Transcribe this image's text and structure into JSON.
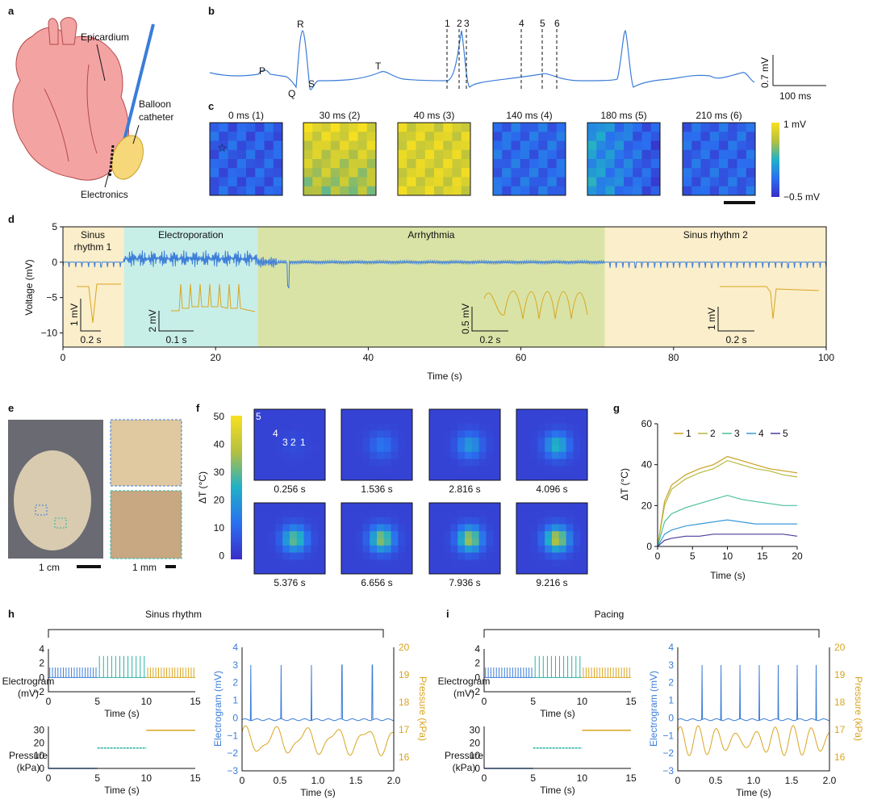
{
  "colors": {
    "blue": "#3b7dd8",
    "gold": "#d9a520",
    "teal": "#2ab3a3",
    "sinus_bg": "#fbeecb",
    "electro_bg": "#c8eee8",
    "arr_bg": "#d9e3a6"
  },
  "panels": {
    "a": "a",
    "b": "b",
    "c": "c",
    "d": "d",
    "e": "e",
    "f": "f",
    "g": "g",
    "h": "h",
    "i": "i"
  },
  "a": {
    "labels": [
      "Epicardium",
      "Balloon",
      "catheter",
      "Electronics"
    ]
  },
  "b": {
    "waves": [
      "P",
      "Q",
      "R",
      "S",
      "T"
    ],
    "markers": [
      "1",
      "2",
      "3",
      "4",
      "5",
      "6"
    ],
    "scale_v": "0.7 mV",
    "scale_t": "100 ms"
  },
  "c": {
    "titles": [
      "0 ms (1)",
      "30 ms (2)",
      "40 ms (3)",
      "140 ms (4)",
      "180 ms (5)",
      "210 ms (6)"
    ],
    "cbar_max": "1 mV",
    "cbar_min": "−0.5 mV",
    "star": "☆"
  },
  "chart_data": [
    {
      "id": "d",
      "type": "line",
      "title": "",
      "xlabel": "Time (s)",
      "ylabel": "Voltage (mV)",
      "xlim": [
        0,
        100
      ],
      "ylim": [
        -12,
        5
      ],
      "xticks": [
        "0",
        "20",
        "40",
        "60",
        "80",
        "100"
      ],
      "yticks": [
        "5",
        "0",
        "−5",
        "−10"
      ],
      "regions": [
        {
          "name": "Sinus rhythm 1",
          "label1": "Sinus",
          "label2": "rhythm 1",
          "start": 0,
          "end": 8
        },
        {
          "name": "Electroporation",
          "start": 8,
          "end": 25.5
        },
        {
          "name": "Arrhythmia",
          "start": 25.5,
          "end": 71
        },
        {
          "name": "Sinus rhythm 2",
          "start": 71,
          "end": 100
        }
      ],
      "insets": [
        {
          "v": "1 mV",
          "t": "0.2 s"
        },
        {
          "v": "2 mV",
          "t": "0.1 s"
        },
        {
          "v": "0.5 mV",
          "t": "0.2 s"
        },
        {
          "v": "1 mV",
          "t": "0.2 s"
        }
      ]
    },
    {
      "id": "f",
      "type": "heatmap",
      "colorbar_label": "ΔT (°C)",
      "cbar_ticks": [
        "50",
        "40",
        "30",
        "20",
        "10",
        "0"
      ],
      "times": [
        "0.256 s",
        "1.536 s",
        "2.816 s",
        "4.096 s",
        "5.376 s",
        "6.656 s",
        "7.936 s",
        "9.216 s"
      ],
      "sensor_labels": [
        "5",
        "4",
        "3",
        "2",
        "1"
      ]
    },
    {
      "id": "g",
      "type": "line",
      "xlabel": "Time (s)",
      "ylabel": "ΔT (°C)",
      "xlim": [
        0,
        20
      ],
      "ylim": [
        0,
        60
      ],
      "xticks": [
        "0",
        "5",
        "10",
        "15",
        "20"
      ],
      "yticks": [
        "0",
        "20",
        "40",
        "60"
      ],
      "series": [
        {
          "name": "1",
          "color": "#c9a020",
          "x": [
            0,
            1,
            2,
            4,
            6,
            8,
            10,
            12,
            14,
            16,
            18,
            20
          ],
          "y": [
            0,
            22,
            30,
            35,
            38,
            40,
            44,
            42,
            40,
            38,
            37,
            36
          ]
        },
        {
          "name": "2",
          "color": "#b7b83c",
          "x": [
            0,
            1,
            2,
            4,
            6,
            8,
            10,
            12,
            14,
            16,
            18,
            20
          ],
          "y": [
            0,
            20,
            28,
            33,
            36,
            38,
            42,
            40,
            38,
            37,
            35,
            34
          ]
        },
        {
          "name": "3",
          "color": "#4bc0a0",
          "x": [
            0,
            1,
            2,
            4,
            6,
            8,
            10,
            12,
            14,
            16,
            18,
            20
          ],
          "y": [
            0,
            12,
            16,
            19,
            21,
            23,
            25,
            23,
            22,
            21,
            20,
            20
          ]
        },
        {
          "name": "4",
          "color": "#3a9ad9",
          "x": [
            0,
            1,
            2,
            4,
            6,
            8,
            10,
            12,
            14,
            16,
            18,
            20
          ],
          "y": [
            0,
            6,
            8,
            10,
            11,
            12,
            13,
            12,
            11,
            11,
            11,
            11
          ]
        },
        {
          "name": "5",
          "color": "#4b3e9a",
          "x": [
            0,
            1,
            2,
            4,
            6,
            8,
            10,
            12,
            14,
            16,
            18,
            20
          ],
          "y": [
            0,
            3,
            4,
            5,
            5,
            6,
            6,
            6,
            6,
            6,
            6,
            5
          ]
        }
      ]
    },
    {
      "id": "h",
      "title": "Sinus rhythm",
      "egm_ylabel1": "Electrogram",
      "egm_ylabel2": "(mV)",
      "pr_ylabel1": "Pressure",
      "pr_ylabel2": "(kPa)",
      "xlabel": "Time (s)",
      "xticks15": [
        "0",
        "5",
        "10",
        "15"
      ],
      "xticks2": [
        "0",
        "0.5",
        "1.0",
        "1.5",
        "2.0"
      ],
      "egm_yticks": [
        "4",
        "2",
        "0",
        "−2"
      ],
      "pr_yticks": [
        "30",
        "20",
        "10",
        "0"
      ],
      "right_yticks_l": [
        "4",
        "3",
        "2",
        "1",
        "0",
        "−1",
        "−2",
        "−3"
      ],
      "right_yticks_r": [
        "20",
        "19",
        "18",
        "17",
        "16"
      ],
      "right_ylabel_l": "Electrogram (mV)",
      "right_ylabel_r": "Pressure (kPa)",
      "pressure_levels": [
        0,
        16,
        30
      ],
      "beats_per_2s": 5
    },
    {
      "id": "i",
      "title": "Pacing",
      "beats_per_2s": 8,
      "pressure_levels": [
        0,
        16,
        30
      ]
    }
  ]
}
